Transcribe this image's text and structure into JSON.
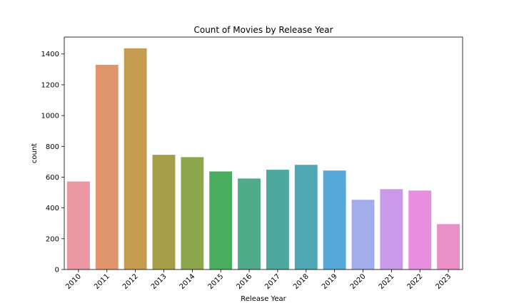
{
  "chart_data": {
    "type": "bar",
    "title": "Count of Movies by Release Year",
    "xlabel": "Release Year",
    "ylabel": "count",
    "categories": [
      "2010",
      "2011",
      "2012",
      "2013",
      "2014",
      "2015",
      "2016",
      "2017",
      "2018",
      "2019",
      "2020",
      "2021",
      "2022",
      "2023"
    ],
    "values": [
      572,
      1330,
      1437,
      745,
      730,
      637,
      591,
      648,
      680,
      643,
      453,
      522,
      513,
      295
    ],
    "colors": [
      "#ea96a3",
      "#e1956c",
      "#c59c4f",
      "#a59d47",
      "#8ca64e",
      "#4aac5e",
      "#4fab89",
      "#4da89d",
      "#4da8b3",
      "#56a8d8",
      "#a3acea",
      "#c99ae8",
      "#e88ee0",
      "#e98fc6"
    ],
    "yticks": [
      0,
      200,
      400,
      600,
      800,
      1000,
      1200,
      1400
    ],
    "ylim": [
      0,
      1510
    ],
    "grid": false,
    "legend": "none"
  }
}
